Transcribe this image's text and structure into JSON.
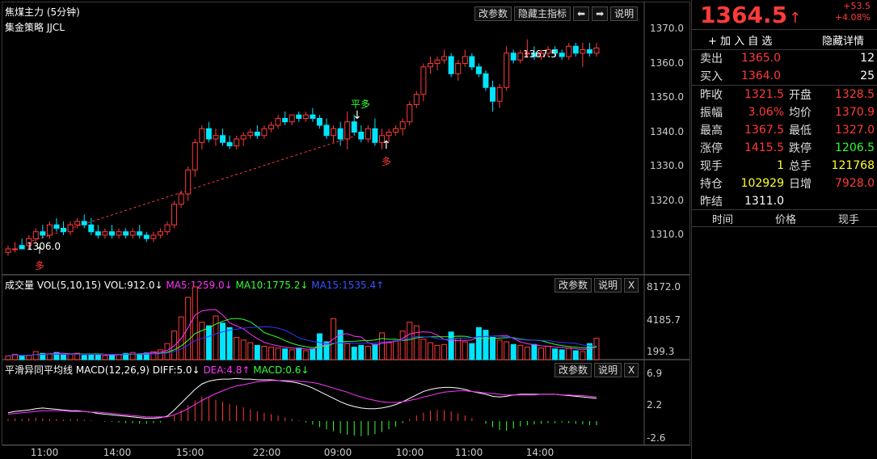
{
  "header": {
    "instrument": "焦煤主力 (5分钟)",
    "strategy": "集金策略 JJCL",
    "buttons": {
      "params": "改参数",
      "hide_indicator": "隐藏主指标",
      "prev": "⬅",
      "next": "➡",
      "help": "说明"
    }
  },
  "main_chart": {
    "yticks": [
      "1370.0",
      "1360.0",
      "1350.0",
      "1340.0",
      "1330.0",
      "1320.0",
      "1310.0"
    ],
    "annotations": {
      "low_price": "1306.0",
      "high_price": "1367.5",
      "long1": "多",
      "long2": "多",
      "flat": "平多"
    }
  },
  "volume_panel": {
    "title_prefix": "成交量 VOL(5,10,15) VOL:912.0↓",
    "ma5": "MA5:1259.0↓",
    "ma10": "MA10:1775.2↓",
    "ma15": "MA15:1535.4↑",
    "buttons": {
      "params": "改参数",
      "help": "说明",
      "close": "X"
    },
    "yticks": [
      "8172.0",
      "4185.7",
      "199.3"
    ]
  },
  "macd_panel": {
    "title_prefix": "平滑异同平均线 MACD(12,26,9) DIFF:5.0↓",
    "dea": "DEA:4.8↑",
    "macd": "MACD:0.6↓",
    "buttons": {
      "params": "改参数",
      "help": "说明",
      "close": "X"
    },
    "yticks": [
      "6.9",
      "2.2",
      "-2.6"
    ]
  },
  "xaxis": {
    "ticks": [
      "11:00",
      "14:00",
      "15:00",
      "22:00",
      "09:00",
      "10:00",
      "11:00",
      "14:00"
    ]
  },
  "quote": {
    "price": "1364.5",
    "arrow": "↑",
    "change": "+53.5",
    "change_pct": "+4.08%",
    "add_watch": "+ 加 入 自 选",
    "hide_detail": "隐藏详情",
    "sell_label": "卖出",
    "sell_price": "1365.0",
    "sell_qty": "12",
    "buy_label": "买入",
    "buy_price": "1364.0",
    "buy_qty": "25",
    "rows": [
      {
        "l1": "昨收",
        "v1": "1321.5",
        "c1": "red",
        "l2": "开盘",
        "v2": "1328.5",
        "c2": "red"
      },
      {
        "l1": "振幅",
        "v1": "3.06%",
        "c1": "red",
        "l2": "均价",
        "v2": "1370.9",
        "c2": "red"
      },
      {
        "l1": "最高",
        "v1": "1367.5",
        "c1": "red",
        "l2": "最低",
        "v2": "1327.0",
        "c2": "red"
      },
      {
        "l1": "涨停",
        "v1": "1415.5",
        "c1": "red",
        "l2": "跌停",
        "v2": "1206.5",
        "c2": "green"
      },
      {
        "l1": "现手",
        "v1": "1",
        "c1": "yel",
        "l2": "总手",
        "v2": "121768",
        "c2": "yel"
      },
      {
        "l1": "持仓",
        "v1": "102929",
        "c1": "yel",
        "l2": "日增",
        "v2": "7928.0",
        "c2": "red"
      }
    ],
    "settle_label": "昨结",
    "settle_value": "1311.0",
    "ticks_header": {
      "time": "时间",
      "price": "价格",
      "volume": "现手"
    }
  },
  "colors": {
    "up": "#ff3b3b",
    "down": "#00e5ff",
    "ma5": "#ff33ff",
    "ma10": "#33ff33",
    "ma15": "#3333ff",
    "diff": "#ffffff",
    "dea": "#ff33ff"
  },
  "chart_data": {
    "type": "candlestick",
    "title": "焦煤主力 (5分钟)",
    "ylim": [
      1303,
      1372
    ],
    "x_tick_labels": [
      "11:00",
      "14:00",
      "15:00",
      "22:00",
      "09:00",
      "10:00",
      "11:00",
      "14:00"
    ],
    "candles": [
      [
        1305,
        1307,
        1304,
        1306
      ],
      [
        1306,
        1308,
        1305,
        1306
      ],
      [
        1307,
        1309,
        1306,
        1306
      ],
      [
        1307,
        1310,
        1306,
        1309
      ],
      [
        1309,
        1312,
        1308,
        1311
      ],
      [
        1311,
        1313,
        1309,
        1310
      ],
      [
        1310,
        1314,
        1309,
        1313
      ],
      [
        1313,
        1315,
        1311,
        1312
      ],
      [
        1312,
        1314,
        1310,
        1311
      ],
      [
        1311,
        1314,
        1310,
        1313
      ],
      [
        1313,
        1315,
        1312,
        1314
      ],
      [
        1314,
        1316,
        1312,
        1313
      ],
      [
        1313,
        1315,
        1310,
        1311
      ],
      [
        1311,
        1313,
        1309,
        1310
      ],
      [
        1310,
        1312,
        1309,
        1311
      ],
      [
        1311,
        1313,
        1309,
        1310
      ],
      [
        1310,
        1312,
        1309,
        1311
      ],
      [
        1311,
        1312,
        1309,
        1310
      ],
      [
        1310,
        1312,
        1309,
        1311
      ],
      [
        1311,
        1313,
        1309,
        1310
      ],
      [
        1310,
        1311,
        1308,
        1309
      ],
      [
        1309,
        1311,
        1308,
        1310
      ],
      [
        1310,
        1312,
        1309,
        1311
      ],
      [
        1311,
        1314,
        1310,
        1313
      ],
      [
        1313,
        1320,
        1312,
        1319
      ],
      [
        1319,
        1323,
        1318,
        1322
      ],
      [
        1322,
        1330,
        1320,
        1329
      ],
      [
        1329,
        1338,
        1327,
        1337
      ],
      [
        1337,
        1342,
        1335,
        1341
      ],
      [
        1341,
        1343,
        1337,
        1338
      ],
      [
        1338,
        1341,
        1336,
        1339
      ],
      [
        1339,
        1341,
        1336,
        1337
      ],
      [
        1337,
        1339,
        1335,
        1336
      ],
      [
        1336,
        1339,
        1335,
        1338
      ],
      [
        1338,
        1340,
        1336,
        1339
      ],
      [
        1339,
        1341,
        1338,
        1340
      ],
      [
        1340,
        1342,
        1338,
        1339
      ],
      [
        1339,
        1342,
        1338,
        1341
      ],
      [
        1341,
        1343,
        1340,
        1342
      ],
      [
        1342,
        1345,
        1341,
        1344
      ],
      [
        1344,
        1346,
        1342,
        1343
      ],
      [
        1343,
        1345,
        1342,
        1345
      ],
      [
        1345,
        1346,
        1343,
        1344
      ],
      [
        1344,
        1346,
        1343,
        1345
      ],
      [
        1345,
        1347,
        1343,
        1344
      ],
      [
        1344,
        1345,
        1341,
        1342
      ],
      [
        1342,
        1344,
        1338,
        1339
      ],
      [
        1339,
        1342,
        1337,
        1341
      ],
      [
        1341,
        1343,
        1336,
        1338
      ],
      [
        1338,
        1346,
        1335,
        1343
      ],
      [
        1343,
        1345,
        1339,
        1340
      ],
      [
        1340,
        1342,
        1337,
        1338
      ],
      [
        1338,
        1342,
        1337,
        1341
      ],
      [
        1341,
        1344,
        1336,
        1337
      ],
      [
        1337,
        1341,
        1335,
        1339
      ],
      [
        1339,
        1341,
        1337,
        1340
      ],
      [
        1340,
        1342,
        1339,
        1341
      ],
      [
        1341,
        1344,
        1339,
        1343
      ],
      [
        1343,
        1349,
        1342,
        1348
      ],
      [
        1348,
        1352,
        1347,
        1351
      ],
      [
        1351,
        1360,
        1349,
        1359
      ],
      [
        1359,
        1362,
        1357,
        1360
      ],
      [
        1360,
        1362,
        1358,
        1361
      ],
      [
        1361,
        1364,
        1360,
        1362
      ],
      [
        1362,
        1363,
        1356,
        1357
      ],
      [
        1357,
        1361,
        1355,
        1360
      ],
      [
        1360,
        1364,
        1359,
        1362
      ],
      [
        1362,
        1363,
        1358,
        1359
      ],
      [
        1359,
        1360,
        1356,
        1357
      ],
      [
        1357,
        1358,
        1352,
        1353
      ],
      [
        1353,
        1355,
        1346,
        1349
      ],
      [
        1349,
        1354,
        1347,
        1353
      ],
      [
        1353,
        1365,
        1352,
        1363
      ],
      [
        1363,
        1364,
        1360,
        1361
      ],
      [
        1361,
        1364,
        1360,
        1363
      ],
      [
        1363,
        1367,
        1362,
        1363
      ],
      [
        1363,
        1365,
        1361,
        1362
      ],
      [
        1362,
        1364,
        1361,
        1363
      ],
      [
        1363,
        1365,
        1362,
        1364
      ],
      [
        1364,
        1365,
        1362,
        1363
      ],
      [
        1363,
        1364,
        1361,
        1362
      ],
      [
        1362,
        1366,
        1361,
        1365
      ],
      [
        1365,
        1366,
        1362,
        1363
      ],
      [
        1363,
        1366,
        1359,
        1364
      ],
      [
        1364,
        1366,
        1362,
        1363
      ],
      [
        1363,
        1366,
        1362,
        1364.5
      ]
    ],
    "volume": [
      420,
      600,
      380,
      500,
      900,
      700,
      650,
      800,
      500,
      600,
      720,
      480,
      550,
      600,
      450,
      520,
      600,
      700,
      800,
      650,
      750,
      900,
      1100,
      1800,
      3200,
      4800,
      7000,
      8172,
      4200,
      3800,
      4900,
      4100,
      3600,
      2500,
      2200,
      1900,
      1600,
      1500,
      1400,
      1300,
      1200,
      1100,
      1300,
      1000,
      1200,
      2900,
      2000,
      4600,
      3300,
      1800,
      1400,
      1600,
      1500,
      1700,
      3000,
      1900,
      2100,
      3200,
      4200,
      3800,
      2300,
      1900,
      1600,
      1700,
      3100,
      2400,
      2000,
      1800,
      3600,
      3300,
      2500,
      2200,
      2000,
      1700,
      1600,
      1400,
      1700,
      1300,
      1500,
      1200,
      1100,
      1300,
      1000,
      900,
      1800,
      2400
    ],
    "macd_hist": [
      0.3,
      0.4,
      0.3,
      0.4,
      0.5,
      0.4,
      0.3,
      0.3,
      0.2,
      0.3,
      0.3,
      0.2,
      0.1,
      0.0,
      -0.1,
      -0.1,
      -0.2,
      -0.3,
      -0.3,
      -0.4,
      -0.4,
      -0.3,
      -0.2,
      0.0,
      0.8,
      1.6,
      2.3,
      3.0,
      3.6,
      3.4,
      3.1,
      2.8,
      2.5,
      2.3,
      2.0,
      1.7,
      1.4,
      1.2,
      1.0,
      0.8,
      0.5,
      0.3,
      0.1,
      -0.2,
      -0.5,
      -0.9,
      -1.2,
      -1.5,
      -1.8,
      -2.0,
      -2.1,
      -2.2,
      -2.1,
      -1.9,
      -1.6,
      -1.2,
      -0.8,
      -0.3,
      0.3,
      0.8,
      1.2,
      1.5,
      1.6,
      1.6,
      1.4,
      1.1,
      0.8,
      0.4,
      0.0,
      -0.4,
      -0.9,
      -1.3,
      -1.4,
      -1.1,
      -0.8,
      -0.6,
      -0.5,
      -0.4,
      -0.3,
      -0.3,
      -0.2,
      -0.3,
      -0.4,
      -0.5,
      -0.6,
      -0.6
    ],
    "diff": [
      1.2,
      1.4,
      1.5,
      1.6,
      1.8,
      1.9,
      1.8,
      1.7,
      1.6,
      1.5,
      1.5,
      1.4,
      1.3,
      1.1,
      1.0,
      0.9,
      0.8,
      0.7,
      0.6,
      0.5,
      0.4,
      0.4,
      0.5,
      0.7,
      1.6,
      2.6,
      3.6,
      4.6,
      5.4,
      5.8,
      6.0,
      6.1,
      6.1,
      6.2,
      6.1,
      6.1,
      6.0,
      6.0,
      6.0,
      5.9,
      5.8,
      5.7,
      5.5,
      5.2,
      4.8,
      4.3,
      3.8,
      3.3,
      2.8,
      2.4,
      2.1,
      1.9,
      1.8,
      1.8,
      1.9,
      2.1,
      2.4,
      2.8,
      3.3,
      3.8,
      4.3,
      4.6,
      4.8,
      4.9,
      4.9,
      4.8,
      4.6,
      4.3,
      4.1,
      3.9,
      3.6,
      3.5,
      3.6,
      3.8,
      3.9,
      3.9,
      3.9,
      3.9,
      3.9,
      3.9,
      3.8,
      3.7,
      3.6,
      3.5,
      3.4,
      3.3
    ],
    "dea": [
      1.0,
      1.1,
      1.2,
      1.3,
      1.4,
      1.5,
      1.5,
      1.5,
      1.5,
      1.4,
      1.4,
      1.4,
      1.3,
      1.3,
      1.2,
      1.1,
      1.0,
      0.9,
      0.8,
      0.7,
      0.6,
      0.6,
      0.6,
      0.6,
      0.9,
      1.3,
      1.8,
      2.4,
      3.0,
      3.5,
      4.0,
      4.4,
      4.8,
      5.1,
      5.3,
      5.5,
      5.7,
      5.8,
      5.9,
      5.9,
      5.9,
      5.9,
      5.8,
      5.7,
      5.6,
      5.4,
      5.1,
      4.8,
      4.5,
      4.2,
      3.8,
      3.5,
      3.2,
      3.0,
      2.8,
      2.7,
      2.7,
      2.8,
      3.0,
      3.2,
      3.5,
      3.7,
      4.0,
      4.2,
      4.3,
      4.4,
      4.4,
      4.3,
      4.2,
      4.1,
      4.0,
      3.9,
      3.8,
      3.8,
      3.8,
      3.8,
      3.8,
      3.9,
      3.9,
      3.9,
      3.8,
      3.8,
      3.7,
      3.7,
      3.6,
      3.5
    ]
  }
}
